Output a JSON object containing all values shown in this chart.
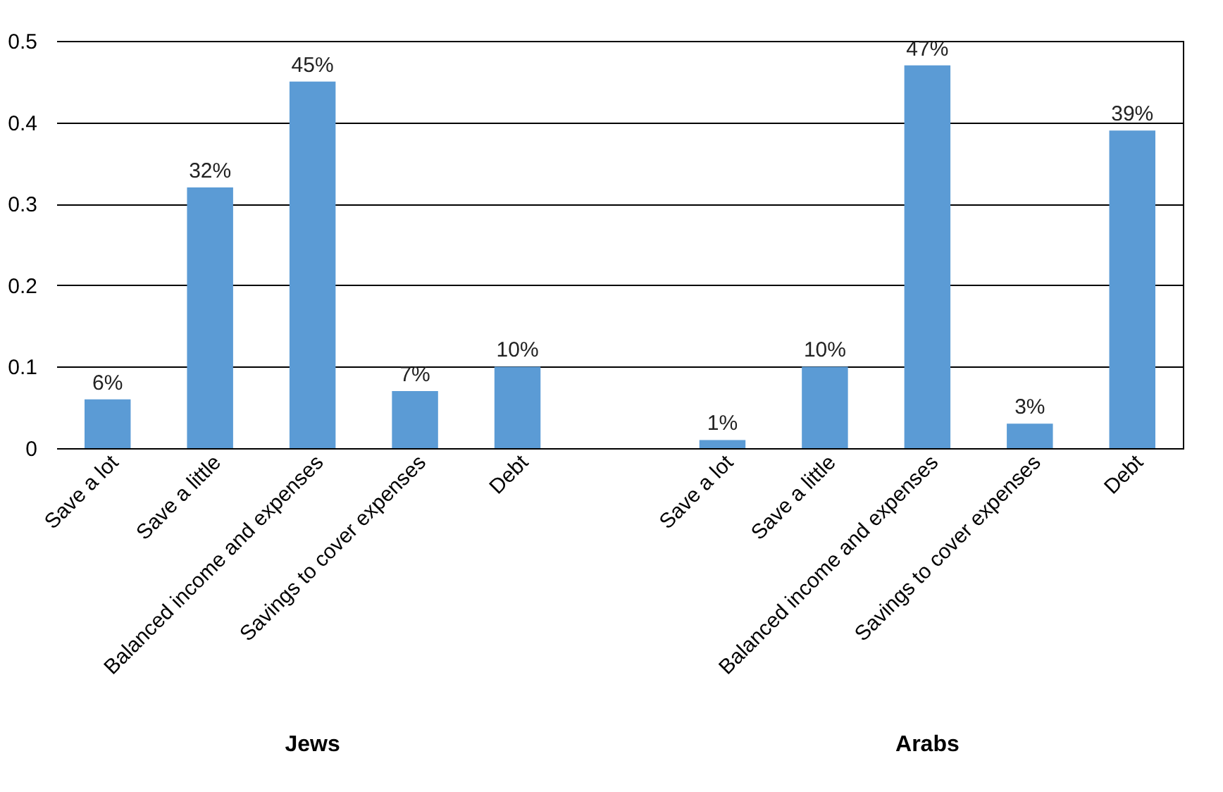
{
  "chart_data": {
    "type": "bar",
    "categories": [
      "Save a lot",
      "Save a little",
      "Balanced income and expenses",
      "Savings to cover expenses",
      "Debt",
      null,
      "Save a lot",
      "Save a little",
      "Balanced income and expenses",
      "Savings to cover expenses",
      "Debt"
    ],
    "values": [
      0.06,
      0.32,
      0.45,
      0.07,
      0.1,
      null,
      0.01,
      0.1,
      0.47,
      0.03,
      0.39
    ],
    "value_labels": [
      "6%",
      "32%",
      "45%",
      "7%",
      "10%",
      null,
      "1%",
      "10%",
      "47%",
      "3%",
      "39%"
    ],
    "color": "#5b9bd5",
    "ylim": [
      0,
      0.5
    ],
    "yticks": [
      0,
      0.1,
      0.2,
      0.3,
      0.4,
      0.5
    ],
    "grid": "y",
    "annotations": [
      "Jews",
      "Arabs"
    ]
  }
}
